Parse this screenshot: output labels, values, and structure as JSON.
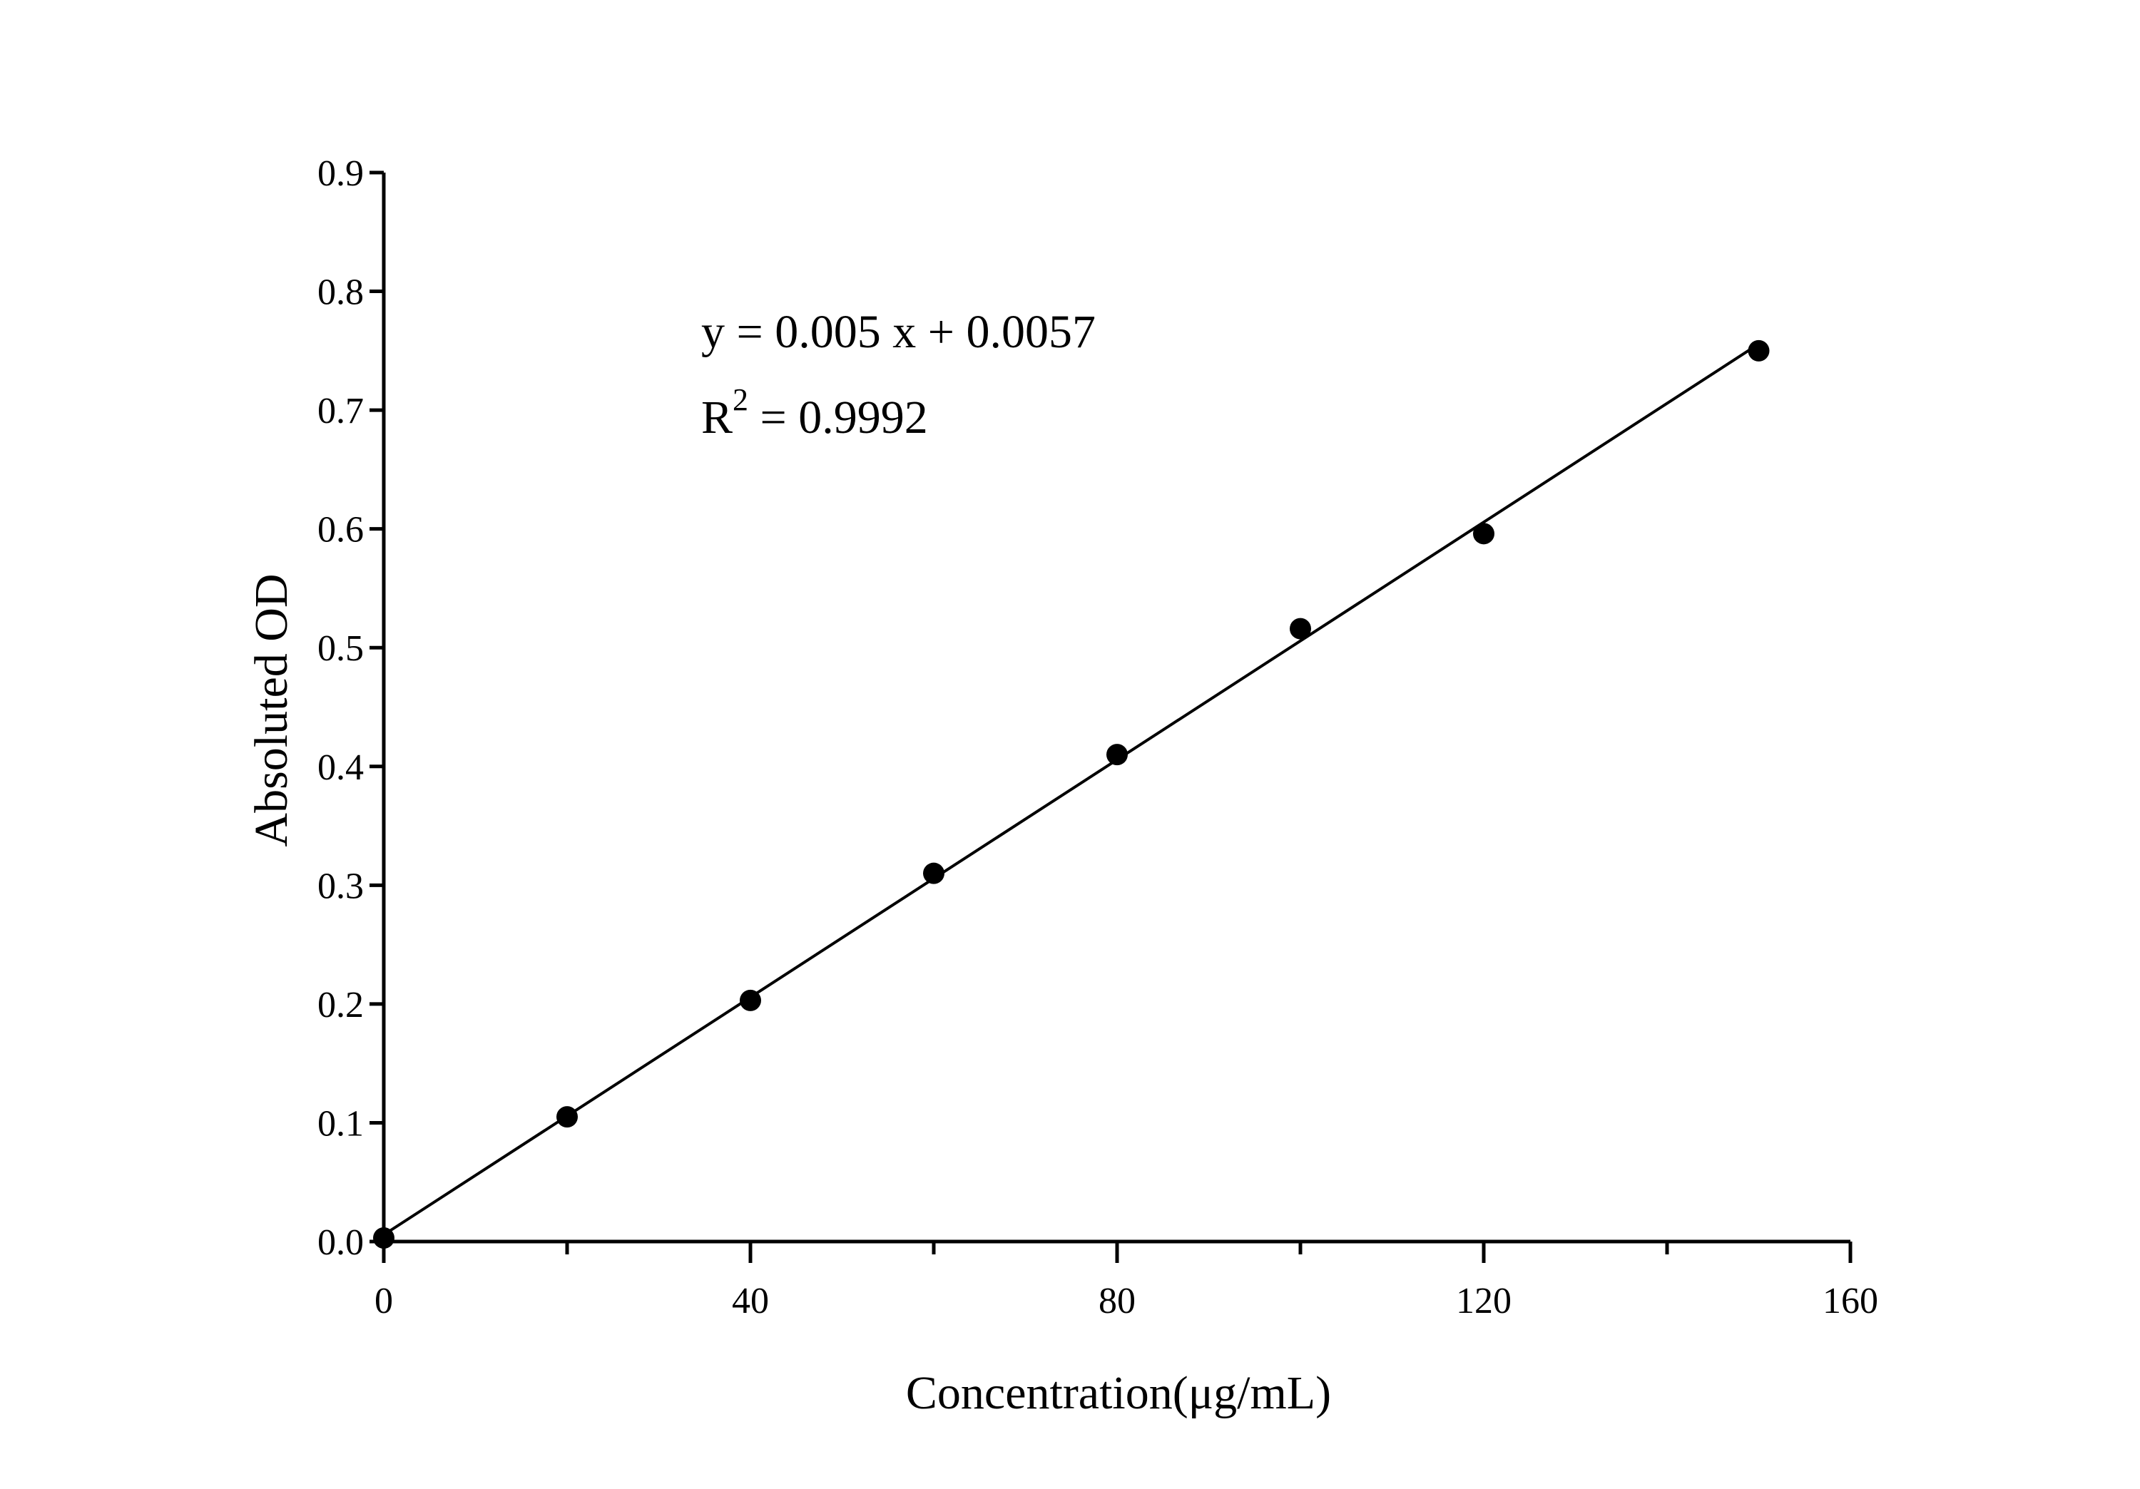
{
  "chart_data": {
    "type": "scatter",
    "title": "",
    "xlabel": "Concentration(μg/mL)",
    "ylabel": "Absoluted OD",
    "xlim": [
      0,
      160
    ],
    "ylim": [
      0,
      0.9
    ],
    "xticks": [
      "0",
      "40",
      "80",
      "120",
      "160"
    ],
    "xminor": [
      20,
      60,
      100,
      140
    ],
    "yticks": [
      "0.0",
      "0.1",
      "0.2",
      "0.3",
      "0.4",
      "0.5",
      "0.6",
      "0.7",
      "0.8",
      "0.9"
    ],
    "grid": false,
    "points": [
      {
        "x": 0,
        "y": 0.003
      },
      {
        "x": 20,
        "y": 0.105
      },
      {
        "x": 40,
        "y": 0.203
      },
      {
        "x": 60,
        "y": 0.31
      },
      {
        "x": 80,
        "y": 0.41
      },
      {
        "x": 100,
        "y": 0.516
      },
      {
        "x": 120,
        "y": 0.596
      },
      {
        "x": 150,
        "y": 0.75
      }
    ],
    "fit": {
      "slope": 0.005,
      "intercept": 0.0057,
      "x_range": [
        0,
        150
      ]
    },
    "annotation": {
      "equation": "y = 0.005 x + 0.0057",
      "r2_prefix": "R",
      "r2_sup": "2",
      "r2_value": " = 0.9992"
    },
    "colors": {
      "marker": "#000000",
      "line": "#000000"
    }
  }
}
